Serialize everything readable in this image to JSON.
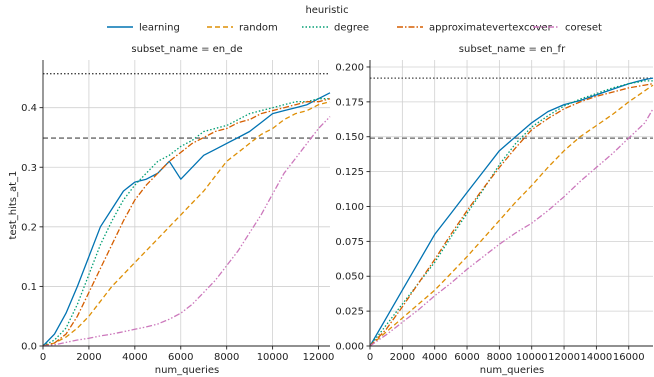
{
  "legend": {
    "title": "heuristic"
  },
  "chart_data": [
    {
      "type": "line",
      "title": "subset_name = en_de",
      "xlabel": "num_queries",
      "ylabel": "test_hits_at_1",
      "xlim": [
        0,
        12500
      ],
      "ylim": [
        0,
        0.48
      ],
      "xticks": [
        0,
        2000,
        4000,
        6000,
        8000,
        10000,
        12000
      ],
      "yticks": [
        0.0,
        0.1,
        0.2,
        0.3,
        0.4
      ],
      "ytick_labels": [
        "0.0",
        "0.1",
        "0.2",
        "0.3",
        "0.4"
      ],
      "grid": true,
      "reference_lines": [
        {
          "style": "dotted",
          "y": 0.457
        },
        {
          "style": "dashed",
          "y": 0.349
        }
      ],
      "series": [
        {
          "name": "learning",
          "color": "#0173b2",
          "dash": "solid",
          "x": [
            0,
            500,
            1000,
            1500,
            2000,
            2500,
            3000,
            3500,
            4000,
            4500,
            5000,
            5500,
            6000,
            6500,
            7000,
            7500,
            8000,
            8500,
            9000,
            9500,
            10000,
            10500,
            11000,
            11500,
            12000,
            12500
          ],
          "y": [
            0.0,
            0.02,
            0.055,
            0.1,
            0.15,
            0.2,
            0.23,
            0.26,
            0.275,
            0.28,
            0.29,
            0.31,
            0.28,
            0.3,
            0.32,
            0.33,
            0.34,
            0.35,
            0.36,
            0.375,
            0.39,
            0.395,
            0.4,
            0.405,
            0.415,
            0.425
          ]
        },
        {
          "name": "random",
          "color": "#de8f05",
          "dash": "dashed",
          "x": [
            0,
            500,
            1000,
            1500,
            2000,
            2500,
            3000,
            3500,
            4000,
            4500,
            5000,
            5500,
            6000,
            6500,
            7000,
            7500,
            8000,
            8500,
            9000,
            9500,
            10000,
            10500,
            11000,
            11500,
            12000,
            12500
          ],
          "y": [
            0.0,
            0.005,
            0.015,
            0.03,
            0.05,
            0.075,
            0.1,
            0.12,
            0.14,
            0.16,
            0.18,
            0.2,
            0.22,
            0.24,
            0.26,
            0.285,
            0.31,
            0.325,
            0.34,
            0.355,
            0.365,
            0.38,
            0.39,
            0.395,
            0.405,
            0.41
          ]
        },
        {
          "name": "degree",
          "color": "#029e73",
          "dash": "dotted",
          "x": [
            0,
            500,
            1000,
            1500,
            2000,
            2500,
            3000,
            3500,
            4000,
            4500,
            5000,
            5500,
            6000,
            6500,
            7000,
            7500,
            8000,
            8500,
            9000,
            9500,
            10000,
            10500,
            11000,
            11500,
            12000,
            12500
          ],
          "y": [
            0.0,
            0.01,
            0.03,
            0.07,
            0.12,
            0.17,
            0.21,
            0.245,
            0.27,
            0.29,
            0.31,
            0.32,
            0.335,
            0.345,
            0.36,
            0.365,
            0.37,
            0.38,
            0.39,
            0.395,
            0.4,
            0.405,
            0.41,
            0.41,
            0.415,
            0.415
          ]
        },
        {
          "name": "approximatevertexcover",
          "color": "#d55e00",
          "dash": "dashdot",
          "x": [
            0,
            500,
            1000,
            1500,
            2000,
            2500,
            3000,
            3500,
            4000,
            4500,
            5000,
            5500,
            6000,
            6500,
            7000,
            7500,
            8000,
            8500,
            9000,
            9500,
            10000,
            10500,
            11000,
            11500,
            12000,
            12500
          ],
          "y": [
            0.0,
            0.005,
            0.02,
            0.05,
            0.09,
            0.13,
            0.17,
            0.21,
            0.245,
            0.27,
            0.29,
            0.31,
            0.325,
            0.34,
            0.35,
            0.36,
            0.365,
            0.375,
            0.38,
            0.39,
            0.395,
            0.4,
            0.405,
            0.41,
            0.41,
            0.415
          ]
        },
        {
          "name": "coreset",
          "color": "#cc78bc",
          "dash": "dashdotdot",
          "x": [
            0,
            500,
            1000,
            1500,
            2000,
            2500,
            3000,
            3500,
            4000,
            4500,
            5000,
            5500,
            6000,
            6500,
            7000,
            7500,
            8000,
            8500,
            9000,
            9500,
            10000,
            10500,
            11000,
            11500,
            12000,
            12500
          ],
          "y": [
            0.0,
            0.002,
            0.006,
            0.01,
            0.013,
            0.017,
            0.02,
            0.024,
            0.028,
            0.032,
            0.037,
            0.045,
            0.055,
            0.07,
            0.09,
            0.11,
            0.135,
            0.16,
            0.19,
            0.22,
            0.255,
            0.29,
            0.315,
            0.34,
            0.365,
            0.385
          ]
        }
      ]
    },
    {
      "type": "line",
      "title": "subset_name = en_fr",
      "xlabel": "num_queries",
      "ylabel": "",
      "xlim": [
        0,
        17500
      ],
      "ylim": [
        0,
        0.205
      ],
      "xticks": [
        0,
        2000,
        4000,
        6000,
        8000,
        10000,
        12000,
        14000,
        16000
      ],
      "yticks": [
        0.0,
        0.025,
        0.05,
        0.075,
        0.1,
        0.125,
        0.15,
        0.175,
        0.2
      ],
      "ytick_labels": [
        "0.000",
        "0.025",
        "0.050",
        "0.075",
        "0.100",
        "0.125",
        "0.150",
        "0.175",
        "0.200"
      ],
      "grid": true,
      "reference_lines": [
        {
          "style": "dotted",
          "y": 0.192
        },
        {
          "style": "dashed",
          "y": 0.149
        }
      ],
      "series": [
        {
          "name": "learning",
          "color": "#0173b2",
          "dash": "solid",
          "x": [
            0,
            1000,
            2000,
            3000,
            4000,
            5000,
            6000,
            7000,
            8000,
            9000,
            10000,
            11000,
            12000,
            13000,
            14000,
            15000,
            16000,
            17000,
            17500
          ],
          "y": [
            0.0,
            0.02,
            0.04,
            0.06,
            0.08,
            0.095,
            0.11,
            0.125,
            0.14,
            0.15,
            0.16,
            0.168,
            0.173,
            0.176,
            0.18,
            0.184,
            0.188,
            0.191,
            0.192
          ]
        },
        {
          "name": "random",
          "color": "#de8f05",
          "dash": "dashed",
          "x": [
            0,
            1000,
            2000,
            3000,
            4000,
            5000,
            6000,
            7000,
            8000,
            9000,
            10000,
            11000,
            12000,
            13000,
            14000,
            15000,
            16000,
            17000,
            17500
          ],
          "y": [
            0.0,
            0.01,
            0.02,
            0.03,
            0.04,
            0.052,
            0.064,
            0.077,
            0.09,
            0.103,
            0.115,
            0.128,
            0.14,
            0.15,
            0.158,
            0.166,
            0.175,
            0.183,
            0.187
          ]
        },
        {
          "name": "degree",
          "color": "#029e73",
          "dash": "dotted",
          "x": [
            0,
            1000,
            2000,
            3000,
            4000,
            5000,
            6000,
            7000,
            8000,
            9000,
            10000,
            11000,
            12000,
            13000,
            14000,
            15000,
            16000,
            17000,
            17500
          ],
          "y": [
            0.0,
            0.015,
            0.03,
            0.045,
            0.06,
            0.078,
            0.095,
            0.112,
            0.13,
            0.145,
            0.157,
            0.165,
            0.172,
            0.177,
            0.181,
            0.185,
            0.188,
            0.19,
            0.19
          ]
        },
        {
          "name": "approximatevertexcover",
          "color": "#d55e00",
          "dash": "dashdot",
          "x": [
            0,
            1000,
            2000,
            3000,
            4000,
            5000,
            6000,
            7000,
            8000,
            9000,
            10000,
            11000,
            12000,
            13000,
            14000,
            15000,
            16000,
            17000,
            17500
          ],
          "y": [
            0.0,
            0.012,
            0.028,
            0.045,
            0.062,
            0.08,
            0.097,
            0.113,
            0.128,
            0.142,
            0.155,
            0.163,
            0.17,
            0.175,
            0.179,
            0.182,
            0.185,
            0.187,
            0.188
          ]
        },
        {
          "name": "coreset",
          "color": "#cc78bc",
          "dash": "dashdotdot",
          "x": [
            0,
            1000,
            2000,
            3000,
            4000,
            5000,
            6000,
            7000,
            8000,
            9000,
            10000,
            11000,
            12000,
            13000,
            14000,
            15000,
            16000,
            17000,
            17500
          ],
          "y": [
            0.0,
            0.008,
            0.017,
            0.026,
            0.036,
            0.045,
            0.055,
            0.064,
            0.073,
            0.081,
            0.088,
            0.097,
            0.107,
            0.118,
            0.128,
            0.138,
            0.149,
            0.16,
            0.17
          ]
        }
      ]
    }
  ]
}
